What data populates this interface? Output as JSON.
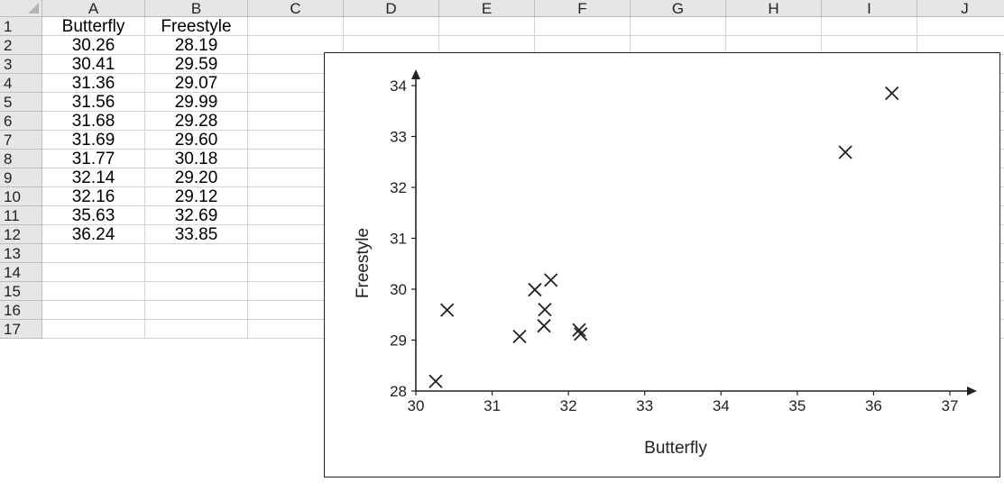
{
  "spreadsheet": {
    "columns": [
      "A",
      "B",
      "C",
      "D",
      "E",
      "F",
      "G",
      "H",
      "I",
      "J"
    ],
    "rows": [
      "1",
      "2",
      "3",
      "4",
      "5",
      "6",
      "7",
      "8",
      "9",
      "10",
      "11",
      "12",
      "13",
      "14",
      "15",
      "16",
      "17"
    ],
    "cells": [
      [
        "Butterfly",
        "Freestyle"
      ],
      [
        "30.26",
        "28.19"
      ],
      [
        "30.41",
        "29.59"
      ],
      [
        "31.36",
        "29.07"
      ],
      [
        "31.56",
        "29.99"
      ],
      [
        "31.68",
        "29.28"
      ],
      [
        "31.69",
        "29.60"
      ],
      [
        "31.77",
        "30.18"
      ],
      [
        "32.14",
        "29.20"
      ],
      [
        "32.16",
        "29.12"
      ],
      [
        "35.63",
        "32.69"
      ],
      [
        "36.24",
        "33.85"
      ]
    ]
  },
  "chart_data": {
    "type": "scatter",
    "title": "",
    "xlabel": "Butterfly",
    "ylabel": "Freestyle",
    "xlim": [
      30,
      37
    ],
    "ylim": [
      28,
      34
    ],
    "xticks": [
      "30",
      "31",
      "32",
      "33",
      "34",
      "35",
      "36",
      "37"
    ],
    "yticks": [
      "28",
      "29",
      "30",
      "31",
      "32",
      "33",
      "34"
    ],
    "marker": "x",
    "grid": false,
    "legend": "none",
    "x": [
      30.26,
      30.41,
      31.36,
      31.56,
      31.68,
      31.69,
      31.77,
      32.14,
      32.16,
      35.63,
      36.24
    ],
    "y": [
      28.19,
      29.59,
      29.07,
      29.99,
      29.28,
      29.6,
      30.18,
      29.2,
      29.12,
      32.69,
      33.85
    ]
  },
  "colors": {
    "header_bg": "#e6e6e6",
    "gridline": "#d4d4d4",
    "marker": "#222222"
  }
}
